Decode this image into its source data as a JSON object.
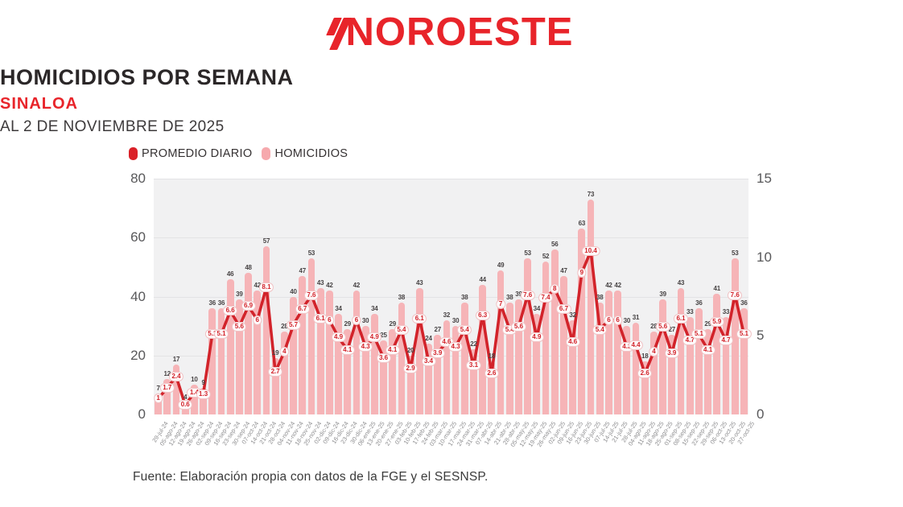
{
  "header": {
    "logo": "NOROESTE",
    "title": "HOMICIDIOS POR SEMANA",
    "subtitle": "SINALOA",
    "date_line": "AL 2 DE NOVIEMBRE DE 2025"
  },
  "legend": [
    {
      "label": "PROMEDIO DIARIO",
      "color": "#da2128"
    },
    {
      "label": "HOMICIDIOS",
      "color": "#f6a9ad"
    }
  ],
  "footer": "Fuente: Elaboración propia con datos de la FGE y el SESNSP.",
  "colors": {
    "brand_red": "#e8242a",
    "bar_fill": "#f6b4b7",
    "line_red": "#d2232a",
    "plot_background": "#f1f1f2"
  },
  "chart_data": {
    "type": "bar+line",
    "title": "HOMICIDIOS POR SEMANA — SINALOA — AL 2 DE NOVIEMBRE DE 2025",
    "legend_position": "top-left",
    "grid": true,
    "left_axis": {
      "range": [
        0,
        80
      ],
      "ticks": [
        0,
        20,
        40,
        60,
        80
      ],
      "series": "HOMICIDIOS"
    },
    "right_axis": {
      "range": [
        0,
        15
      ],
      "ticks": [
        0,
        5,
        10,
        15
      ],
      "series": "PROMEDIO DIARIO"
    },
    "categories": [
      "29-jul-24",
      "05-ago-24",
      "12-ago-24",
      "19-ago-24",
      "26-ago-24",
      "02-sep-24",
      "09-sep-24",
      "16-sep-24",
      "23-sep-24",
      "30-sep-24",
      "07-oct-24",
      "14-oct-24",
      "21-oct-24",
      "28-oct-24",
      "04-nov-24",
      "11-nov-24",
      "18-nov-24",
      "25-nov-24",
      "02-dic-24",
      "09-dic-24",
      "16-dic-24",
      "23-dic-24",
      "30-dic-24",
      "06-ene-25",
      "13-ene-25",
      "20-ene-25",
      "27-ene-25",
      "03-feb-25",
      "10-feb-25",
      "17-feb-25",
      "24-feb-25",
      "03-mar-25",
      "10-mar-25",
      "17-mar-25",
      "24-mar-25",
      "31-mar-25",
      "07-abr-25",
      "14-abr-25",
      "21-abr-25",
      "28-abr-25",
      "05-may-25",
      "12-may-25",
      "19-may-25",
      "26-may-25",
      "02-jun-25",
      "09-jun-25",
      "16-jun-25",
      "23-jun-25",
      "30-jun-25",
      "07-jul-25",
      "14-jul-25",
      "21-jul-25",
      "28-jul-25",
      "04-ago-25",
      "11-ago-25",
      "18-ago-25",
      "25-ago-25",
      "01-sep-25",
      "08-sep-25",
      "15-sep-25",
      "22-sep-25",
      "29-sep-25",
      "06-oct-25",
      "13-oct-25",
      "20-oct-25",
      "27-oct-25"
    ],
    "series": [
      {
        "name": "HOMICIDIOS",
        "type": "bar",
        "yaxis": "left",
        "color": "#f6b4b7",
        "values": [
          7,
          12,
          17,
          4,
          10,
          9,
          36,
          36,
          46,
          39,
          48,
          42,
          57,
          19,
          28,
          40,
          47,
          53,
          43,
          42,
          34,
          29,
          42,
          30,
          34,
          25,
          29,
          38,
          20,
          43,
          24,
          27,
          32,
          30,
          38,
          22,
          44,
          18,
          49,
          38,
          39,
          53,
          34,
          52,
          56,
          47,
          32,
          63,
          73,
          38,
          42,
          42,
          30,
          31,
          18,
          28,
          39,
          27,
          43,
          33,
          36,
          29,
          41,
          33,
          53,
          36
        ]
      },
      {
        "name": "PROMEDIO DIARIO",
        "type": "line",
        "yaxis": "right",
        "color": "#d2232a",
        "values": [
          1,
          1.7,
          2.4,
          0.6,
          1.4,
          1.3,
          5.1,
          5.1,
          6.6,
          5.6,
          6.9,
          6,
          8.1,
          2.7,
          4,
          5.7,
          6.7,
          7.6,
          6.1,
          6,
          4.9,
          4.1,
          6,
          4.3,
          4.9,
          3.6,
          4.1,
          5.4,
          2.9,
          6.1,
          3.4,
          3.9,
          4.6,
          4.3,
          5.4,
          3.1,
          6.3,
          2.6,
          7,
          5.4,
          5.6,
          7.6,
          4.9,
          7.4,
          8,
          6.7,
          4.6,
          9,
          10.4,
          5.4,
          6,
          6,
          4.3,
          4.4,
          2.6,
          4,
          5.6,
          3.9,
          6.1,
          4.7,
          5.1,
          4.1,
          5.9,
          4.7,
          7.6,
          5.1
        ]
      }
    ]
  }
}
